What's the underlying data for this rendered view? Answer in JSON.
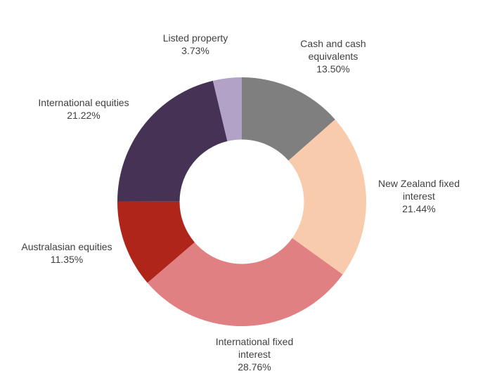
{
  "chart_data": {
    "type": "pie",
    "subtype": "donut",
    "title": "",
    "unit": "%",
    "direction": "clockwise",
    "start_angle_deg": 0,
    "inner_radius_ratio": 0.5,
    "legend": "none",
    "background_color": "#ffffff",
    "label_text_color": "#404040",
    "segments": [
      {
        "id": "cash",
        "label": "Cash and cash equivalents",
        "value": 13.5,
        "display_value": "13.50%",
        "color": "#7f7f7f",
        "label_lines": [
          "Cash and cash",
          "equivalents",
          "13.50%"
        ]
      },
      {
        "id": "nz-fixed",
        "label": "New Zealand fixed interest",
        "value": 21.44,
        "display_value": "21.44%",
        "color": "#f8cbad",
        "label_lines": [
          "New Zealand fixed",
          "interest",
          "21.44%"
        ]
      },
      {
        "id": "intl-fixed",
        "label": "International fixed interest",
        "value": 28.76,
        "display_value": "28.76%",
        "color": "#e08083",
        "label_lines": [
          "International fixed",
          "interest",
          "28.76%"
        ]
      },
      {
        "id": "australasian",
        "label": "Australasian equities",
        "value": 11.35,
        "display_value": "11.35%",
        "color": "#b0251a",
        "label_lines": [
          "Australasian equities",
          "11.35%"
        ]
      },
      {
        "id": "intl-equities",
        "label": "International equities",
        "value": 21.22,
        "display_value": "21.22%",
        "color": "#453254",
        "label_lines": [
          "International equities",
          "21.22%"
        ]
      },
      {
        "id": "listed-property",
        "label": "Listed property",
        "value": 3.73,
        "display_value": "3.73%",
        "color": "#b3a2c7",
        "label_lines": [
          "Listed property",
          "3.73%"
        ]
      }
    ]
  }
}
